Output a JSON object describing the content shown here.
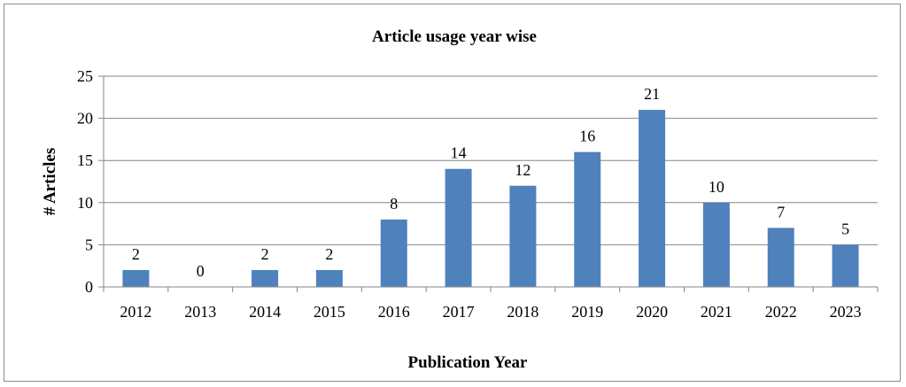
{
  "chart_data": {
    "type": "bar",
    "title": "Article usage year wise",
    "xlabel": "Publication Year",
    "ylabel": "# Articles",
    "categories": [
      "2012",
      "2013",
      "2014",
      "2015",
      "2016",
      "2017",
      "2018",
      "2019",
      "2020",
      "2021",
      "2022",
      "2023"
    ],
    "values": [
      2,
      0,
      2,
      2,
      8,
      14,
      12,
      16,
      21,
      10,
      7,
      5
    ],
    "ylim": [
      0,
      25
    ],
    "yticks": [
      0,
      5,
      10,
      15,
      20,
      25
    ],
    "grid": true,
    "legend": "none",
    "bar_color": "#4f81bd",
    "data_labels": true
  }
}
